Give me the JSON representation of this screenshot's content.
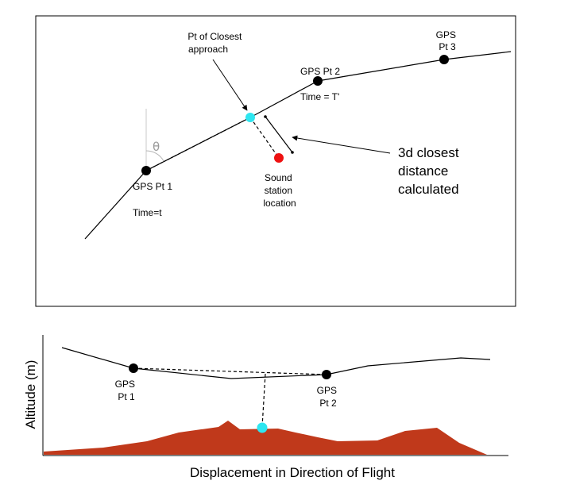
{
  "top_panel": {
    "labels": {
      "closest_approach": [
        "Pt of Closest",
        "approach"
      ],
      "gps3": [
        "GPS",
        "Pt 3"
      ],
      "gps2": "GPS Pt 2",
      "time_t_prime": "Time = T'",
      "theta": "θ",
      "gps1": "GPS Pt 1",
      "time_t": "Time=t",
      "sound_station": [
        "Sound",
        "station",
        "location"
      ],
      "distance": [
        "3d closest",
        "distance",
        "calculated"
      ]
    },
    "colors": {
      "closest_point": "#2ee6f0",
      "sound_station": "#ee1111",
      "gps_point": "#000000"
    }
  },
  "bottom_panel": {
    "labels": {
      "gps1": [
        "GPS",
        "Pt 1"
      ],
      "gps2": [
        "GPS",
        "Pt 2"
      ],
      "y_axis": "Altitude (m)",
      "x_axis": "Displacement in Direction of Flight"
    },
    "colors": {
      "terrain": "#c0391b",
      "closest_point": "#2ee6f0"
    }
  }
}
